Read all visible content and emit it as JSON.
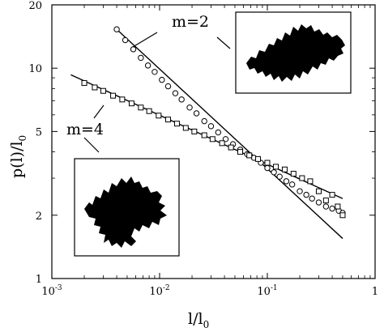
{
  "chart_data": {
    "type": "scatter",
    "title": "",
    "x_scale": "log",
    "y_scale": "log",
    "xlim": [
      0.001,
      1
    ],
    "ylim": [
      1,
      20
    ],
    "xlabel": {
      "main": "l/l",
      "sub": "0"
    },
    "ylabel": {
      "main": "p(l)/l",
      "sub": "0"
    },
    "x_ticks": [
      {
        "value": 0.001,
        "base": "10",
        "exp": "-3"
      },
      {
        "value": 0.01,
        "base": "10",
        "exp": "-2"
      },
      {
        "value": 0.1,
        "base": "10",
        "exp": "-1"
      },
      {
        "value": 1,
        "base": "1",
        "exp": ""
      }
    ],
    "y_ticks": [
      {
        "value": 1,
        "label": "1"
      },
      {
        "value": 2,
        "label": "2"
      },
      {
        "value": 5,
        "label": "5"
      },
      {
        "value": 10,
        "label": "10"
      },
      {
        "value": 20,
        "label": "20"
      }
    ],
    "grid": false,
    "legend": "none",
    "series": [
      {
        "name": "m=2",
        "marker": "circle",
        "points": [
          [
            0.004,
            15.3
          ],
          [
            0.0048,
            13.6
          ],
          [
            0.0057,
            12.3
          ],
          [
            0.0067,
            11.2
          ],
          [
            0.0078,
            10.3
          ],
          [
            0.009,
            9.6
          ],
          [
            0.0105,
            8.8
          ],
          [
            0.012,
            8.2
          ],
          [
            0.014,
            7.6
          ],
          [
            0.016,
            7.1
          ],
          [
            0.019,
            6.5
          ],
          [
            0.022,
            6.1
          ],
          [
            0.026,
            5.6
          ],
          [
            0.03,
            5.3
          ],
          [
            0.035,
            4.95
          ],
          [
            0.041,
            4.6
          ],
          [
            0.048,
            4.35
          ],
          [
            0.056,
            4.1
          ],
          [
            0.065,
            3.9
          ],
          [
            0.075,
            3.75
          ],
          [
            0.087,
            3.55
          ],
          [
            0.1,
            3.35
          ],
          [
            0.115,
            3.2
          ],
          [
            0.13,
            3.05
          ],
          [
            0.15,
            2.9
          ],
          [
            0.17,
            2.8
          ],
          [
            0.2,
            2.6
          ],
          [
            0.23,
            2.5
          ],
          [
            0.26,
            2.4
          ],
          [
            0.3,
            2.3
          ],
          [
            0.35,
            2.2
          ],
          [
            0.4,
            2.15
          ],
          [
            0.46,
            2.1
          ],
          [
            0.5,
            2.05
          ]
        ],
        "fit_line": [
          [
            0.004,
            15.3
          ],
          [
            0.5,
            1.55
          ]
        ]
      },
      {
        "name": "m=4",
        "marker": "square",
        "points": [
          [
            0.002,
            8.5
          ],
          [
            0.0025,
            8.1
          ],
          [
            0.003,
            7.8
          ],
          [
            0.0037,
            7.4
          ],
          [
            0.0045,
            7.1
          ],
          [
            0.0055,
            6.8
          ],
          [
            0.0067,
            6.5
          ],
          [
            0.008,
            6.25
          ],
          [
            0.0098,
            5.95
          ],
          [
            0.012,
            5.7
          ],
          [
            0.0145,
            5.45
          ],
          [
            0.0175,
            5.2
          ],
          [
            0.021,
            5.0
          ],
          [
            0.026,
            4.8
          ],
          [
            0.031,
            4.6
          ],
          [
            0.038,
            4.4
          ],
          [
            0.046,
            4.2
          ],
          [
            0.056,
            4.0
          ],
          [
            0.068,
            3.85
          ],
          [
            0.082,
            3.7
          ],
          [
            0.1,
            3.55
          ],
          [
            0.12,
            3.4
          ],
          [
            0.145,
            3.3
          ],
          [
            0.175,
            3.15
          ],
          [
            0.21,
            3.0
          ],
          [
            0.25,
            2.9
          ],
          [
            0.3,
            2.6
          ],
          [
            0.35,
            2.35
          ],
          [
            0.4,
            2.5
          ],
          [
            0.45,
            2.2
          ],
          [
            0.5,
            2.0
          ]
        ],
        "fit_line": [
          [
            0.0015,
            9.3
          ],
          [
            0.5,
            2.4
          ]
        ]
      }
    ],
    "annotations": [
      {
        "text": "m=2",
        "inset": "upper-right"
      },
      {
        "text": "m=4",
        "inset": "lower-left"
      }
    ]
  }
}
